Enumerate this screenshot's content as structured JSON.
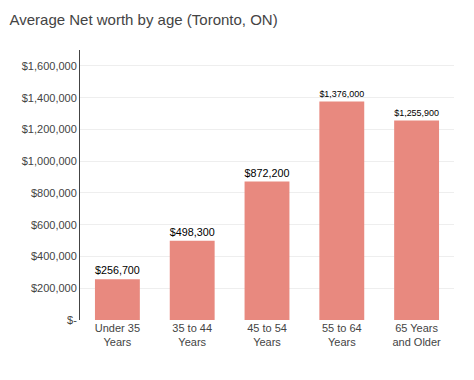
{
  "chart_data": {
    "type": "bar",
    "title": "Average Net worth by age (Toronto, ON)",
    "categories": [
      "Under 35\nYears",
      "35 to 44\nYears",
      "45 to 54\nYears",
      "55 to 64\nYears",
      "65 Years\nand Older"
    ],
    "values": [
      256700,
      498300,
      872200,
      1376000,
      1255900
    ],
    "value_labels": [
      "$256,700",
      "$498,300",
      "$872,200",
      "$1,376,000",
      "$1,255,900"
    ],
    "data_labels": true,
    "color": "#E8897F",
    "ylim": [
      0,
      1700000
    ],
    "yticks": [
      {
        "value": 0,
        "label": "$-"
      },
      {
        "value": 200000,
        "label": "$200,000"
      },
      {
        "value": 400000,
        "label": "$400,000"
      },
      {
        "value": 600000,
        "label": "$600,000"
      },
      {
        "value": 800000,
        "label": "$800,000"
      },
      {
        "value": 1000000,
        "label": "$1,000,000"
      },
      {
        "value": 1200000,
        "label": "$1,200,000"
      },
      {
        "value": 1400000,
        "label": "$1,400,000"
      },
      {
        "value": 1600000,
        "label": "$1,600,000"
      }
    ],
    "grid": true
  }
}
